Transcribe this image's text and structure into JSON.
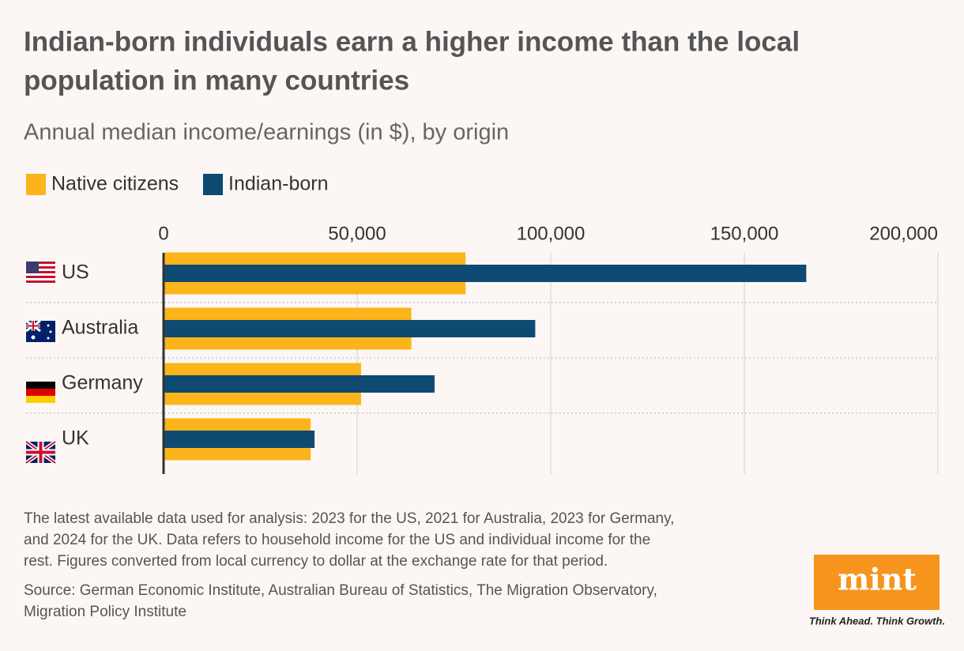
{
  "chart_data": {
    "type": "bar",
    "orientation": "horizontal",
    "title": [
      "Indian-born individuals earn a higher income than the local",
      "population in many countries"
    ],
    "subtitle": "Annual median income/earnings (in $), by origin",
    "categories": [
      "US",
      "Australia",
      "Germany",
      "UK"
    ],
    "series": [
      {
        "name": "Native citizens",
        "color": "#fbb41a",
        "values": [
          78000,
          64000,
          51000,
          38000
        ]
      },
      {
        "name": "Indian-born",
        "color": "#0e4a72",
        "values": [
          166000,
          96000,
          70000,
          39000
        ]
      }
    ],
    "xlim": [
      0,
      200000
    ],
    "xticks": [
      0,
      {
        "value": 50000,
        "label": "50,000"
      },
      {
        "value": 100000,
        "label": "100,000"
      },
      {
        "value": 150000,
        "label": "150,000"
      },
      {
        "value": 200000,
        "label": "200,000"
      }
    ],
    "grid": true,
    "legend": "top-left",
    "note": [
      "The latest available data used for analysis: 2023 for the US, 2021 for Australia, 2023 for Germany,",
      "and 2024 for the UK. Data refers to household income for the US and individual income for the",
      "rest. Figures converted from local currency to dollar at the exchange rate for that period."
    ],
    "source": [
      "Source: German Economic Institute, Australian Bureau of Statistics, The Migration Observatory,",
      "Migration Policy Institute"
    ],
    "brand": {
      "logo": "mint",
      "tagline": "Think Ahead. Think Growth."
    }
  }
}
